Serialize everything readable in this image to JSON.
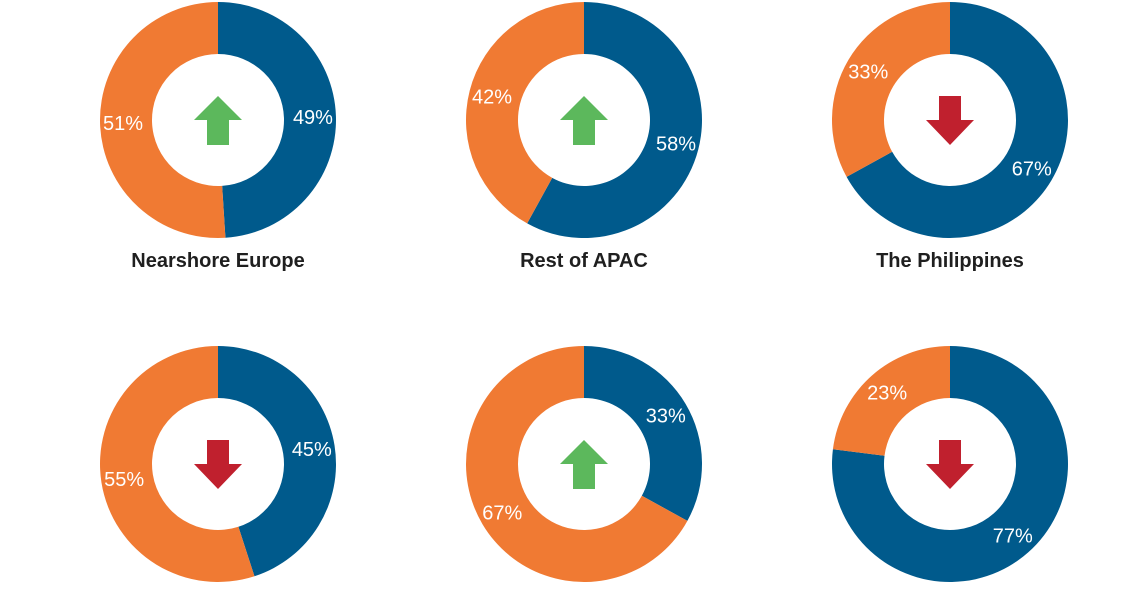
{
  "colors": {
    "blue": "#005a8c",
    "orange": "#f07a33",
    "up": "#5cb85c",
    "down": "#c0202e"
  },
  "chart_data": [
    {
      "type": "pie",
      "title": "Nearshore Europe",
      "trend": "up",
      "slices": [
        {
          "color": "blue",
          "value": 49,
          "label": "49%"
        },
        {
          "color": "orange",
          "value": 51,
          "label": "51%"
        }
      ]
    },
    {
      "type": "pie",
      "title": "Rest of APAC",
      "trend": "up",
      "slices": [
        {
          "color": "blue",
          "value": 58,
          "label": "58%"
        },
        {
          "color": "orange",
          "value": 42,
          "label": "42%"
        }
      ]
    },
    {
      "type": "pie",
      "title": "The Philippines",
      "trend": "down",
      "slices": [
        {
          "color": "blue",
          "value": 67,
          "label": "67%"
        },
        {
          "color": "orange",
          "value": 33,
          "label": "33%"
        }
      ]
    },
    {
      "type": "pie",
      "title": "",
      "trend": "down",
      "slices": [
        {
          "color": "blue",
          "value": 45,
          "label": "45%"
        },
        {
          "color": "orange",
          "value": 55,
          "label": "55%"
        }
      ]
    },
    {
      "type": "pie",
      "title": "",
      "trend": "up",
      "slices": [
        {
          "color": "blue",
          "value": 33,
          "label": "33%"
        },
        {
          "color": "orange",
          "value": 67,
          "label": "67%"
        }
      ]
    },
    {
      "type": "pie",
      "title": "",
      "trend": "down",
      "slices": [
        {
          "color": "blue",
          "value": 77,
          "label": "77%"
        },
        {
          "color": "orange",
          "value": 23,
          "label": "23%"
        }
      ]
    }
  ]
}
